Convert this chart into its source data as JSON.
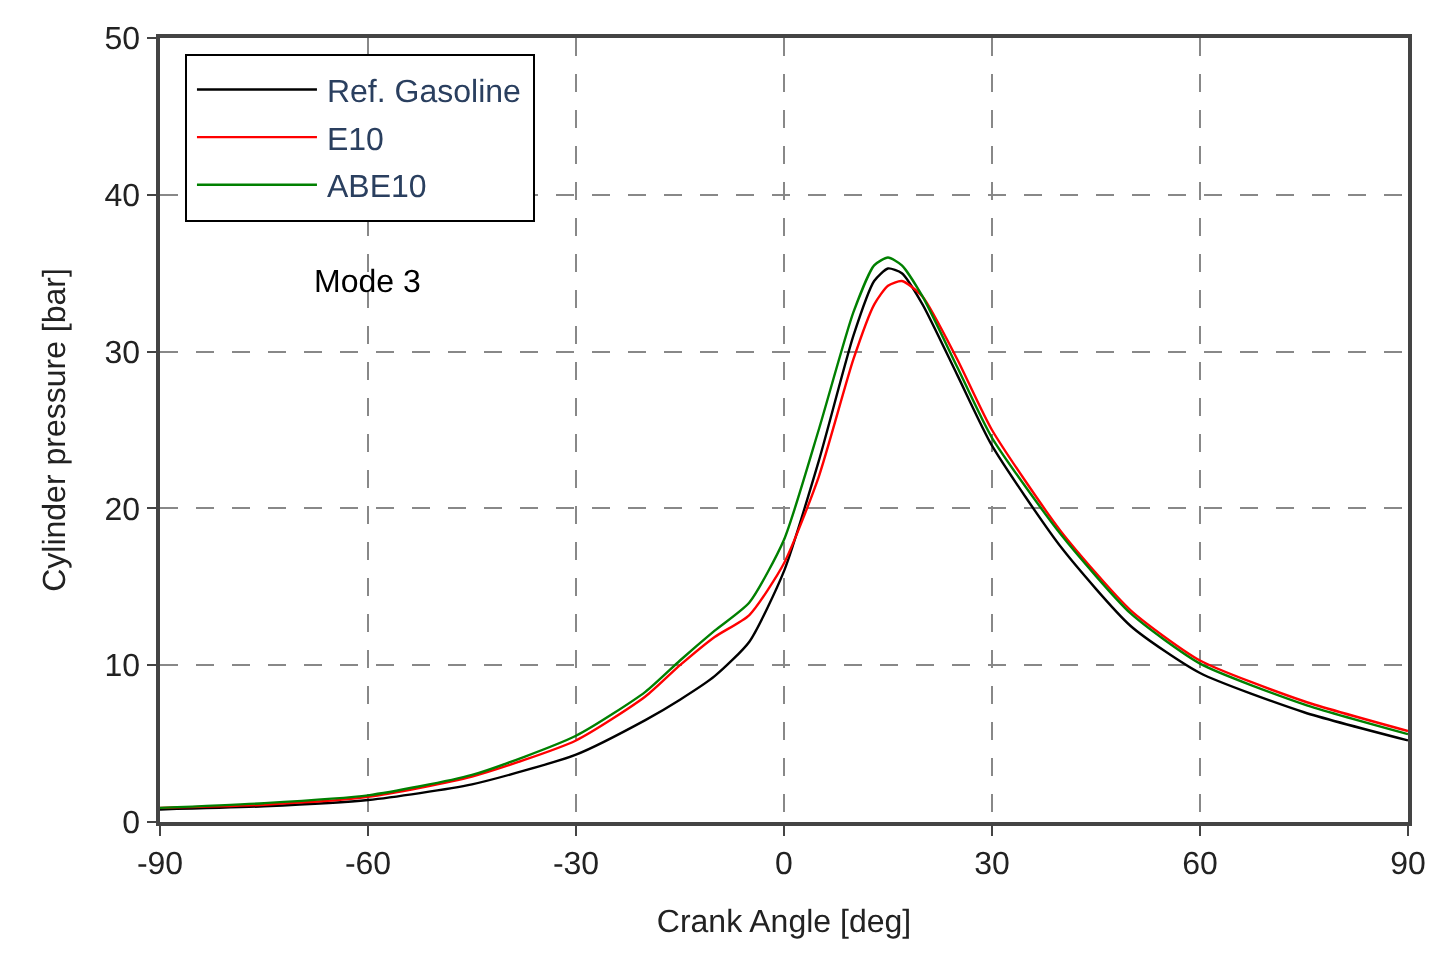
{
  "chart_data": {
    "type": "line",
    "xlabel": "Crank Angle [deg]",
    "ylabel": "Cylinder pressure [bar]",
    "x": [
      -90,
      -75,
      -60,
      -45,
      -30,
      -20,
      -15,
      -10,
      -5,
      0,
      5,
      10,
      13,
      15,
      17,
      20,
      25,
      30,
      40,
      50,
      60,
      75,
      90
    ],
    "series": [
      {
        "name": "Ref. Gasoline",
        "color": "#000000",
        "values": [
          0.8,
          1.0,
          1.4,
          2.4,
          4.3,
          6.5,
          7.8,
          9.3,
          11.5,
          16,
          23,
          31,
          34.5,
          35.3,
          35,
          33,
          28.5,
          24,
          17.5,
          12.5,
          9.5,
          7,
          5.2
        ]
      },
      {
        "name": "E10",
        "color": "#ff0000",
        "values": [
          0.9,
          1.1,
          1.6,
          2.9,
          5.2,
          8,
          10,
          11.8,
          13.2,
          16.5,
          22,
          29.5,
          33,
          34.2,
          34.5,
          33.5,
          29.5,
          25,
          18.5,
          13.5,
          10.3,
          7.7,
          5.8
        ]
      },
      {
        "name": "ABE10",
        "color": "#008000",
        "values": [
          0.9,
          1.2,
          1.7,
          3.0,
          5.5,
          8.3,
          10.3,
          12.2,
          14,
          18,
          25,
          32.5,
          35.5,
          36,
          35.5,
          33.5,
          29,
          24.5,
          18.3,
          13.3,
          10.1,
          7.5,
          5.6
        ]
      }
    ],
    "annotations": [
      "Mode 3"
    ],
    "xlim": [
      -90,
      90
    ],
    "xticks": [
      -90,
      -60,
      -30,
      0,
      30,
      60,
      90
    ],
    "ylim": [
      0,
      50
    ],
    "yticks": [
      0,
      10,
      20,
      30,
      40,
      50
    ],
    "grid": true,
    "legend": "top left",
    "marker": "none",
    "line_style": "solid"
  }
}
